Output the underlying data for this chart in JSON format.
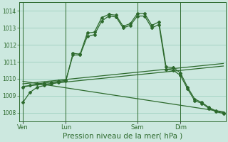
{
  "background_color": "#cce8df",
  "grid_color": "#9ecfbf",
  "line_color": "#2d6a2d",
  "marker_color": "#2d6a2d",
  "xlabel": "Pression niveau de la mer( hPa )",
  "xlabel_fontsize": 7.5,
  "ylim": [
    1007.5,
    1014.5
  ],
  "yticks": [
    1008,
    1009,
    1010,
    1011,
    1012,
    1013,
    1014
  ],
  "xtick_labels": [
    "Ven",
    "Lun",
    "Sam",
    "Dim"
  ],
  "xtick_positions": [
    0,
    6,
    16,
    22
  ],
  "vlines": [
    0,
    6,
    16,
    22
  ],
  "xmax": 28,
  "series1_x": [
    0,
    1,
    2,
    3,
    4,
    5,
    6,
    7,
    8,
    9,
    10,
    11,
    12,
    13,
    14,
    15,
    16,
    17,
    18,
    19,
    20,
    21,
    22,
    23,
    24,
    25,
    26,
    27,
    28
  ],
  "series1_y": [
    1008.6,
    1009.2,
    1009.5,
    1009.6,
    1009.7,
    1009.8,
    1009.85,
    1011.5,
    1011.45,
    1012.7,
    1012.75,
    1013.6,
    1013.8,
    1013.75,
    1013.1,
    1013.25,
    1013.85,
    1013.85,
    1013.15,
    1013.35,
    1010.7,
    1010.65,
    1010.35,
    1009.5,
    1008.8,
    1008.6,
    1008.3,
    1008.1,
    1008.0
  ],
  "series2_x": [
    0,
    1,
    2,
    3,
    4,
    5,
    6,
    7,
    8,
    9,
    10,
    11,
    12,
    13,
    14,
    15,
    16,
    17,
    18,
    19,
    20,
    21,
    22,
    23,
    24,
    25,
    26,
    27,
    28
  ],
  "series2_y": [
    1009.5,
    1009.6,
    1009.7,
    1009.75,
    1009.8,
    1009.85,
    1009.9,
    1011.4,
    1011.4,
    1012.5,
    1012.6,
    1013.4,
    1013.7,
    1013.65,
    1013.0,
    1013.15,
    1013.7,
    1013.7,
    1013.0,
    1013.2,
    1010.55,
    1010.5,
    1010.2,
    1009.4,
    1008.7,
    1008.55,
    1008.25,
    1008.05,
    1007.95
  ],
  "series3_x": [
    0,
    28
  ],
  "series3_y": [
    1009.7,
    1010.9
  ],
  "series4_x": [
    0,
    28
  ],
  "series4_y": [
    1009.55,
    1010.75
  ],
  "series5_x": [
    0,
    28
  ],
  "series5_y": [
    1009.85,
    1008.05
  ]
}
